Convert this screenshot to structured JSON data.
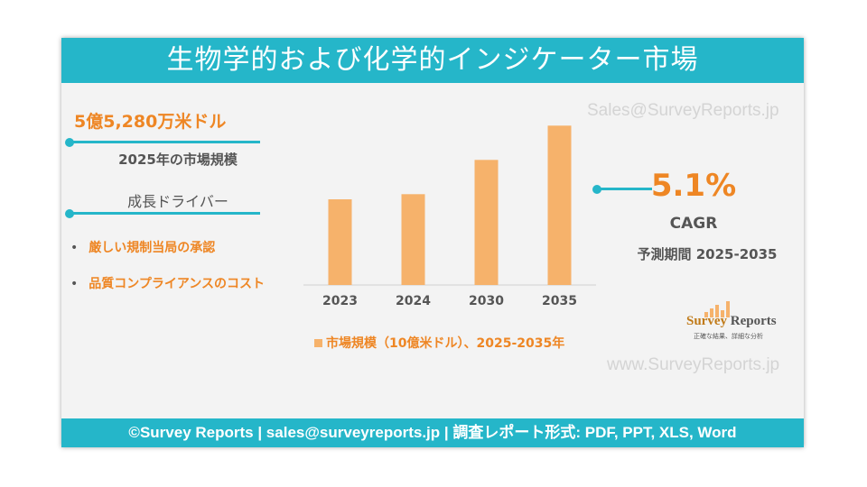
{
  "title": "生物学的および化学的インジケーター市場",
  "watermark_top": "Sales@SurveyReports.jp",
  "watermark_bottom": "www.SurveyReports.jp",
  "market_value": "5億5,280万米ドル",
  "market_value_label": "2025年の市場規模",
  "growth_drivers_title": "成長ドライバー",
  "growth_drivers": [
    "厳しい規制当局の承認",
    "品質コンプライアンスのコスト"
  ],
  "cagr_value": "5.1%",
  "cagr_label": "CAGR",
  "forecast_period": "予測期間 2025-2035",
  "logo": {
    "name_part1": "Survey",
    "name_part2": "Reports",
    "tagline": "正確な結果、詳細な分析"
  },
  "footer": "©Survey Reports | sales@surveyreports.jp | 調査レポート形式: PDF, PPT, XLS, Word",
  "colors": {
    "accent": "#25b6c9",
    "bar": "#f6b26b",
    "highlight": "#ee8624",
    "text": "#555555"
  },
  "chart_data": {
    "type": "bar",
    "categories": [
      "2023",
      "2024",
      "2030",
      "2035"
    ],
    "series": [
      {
        "name": "市場規模（10億米ドル）、2025-2035年",
        "values": [
          0.5,
          0.53,
          0.73,
          0.93
        ]
      }
    ],
    "ylim": [
      0,
      1.0
    ],
    "legend": "bottom",
    "grid": false
  }
}
